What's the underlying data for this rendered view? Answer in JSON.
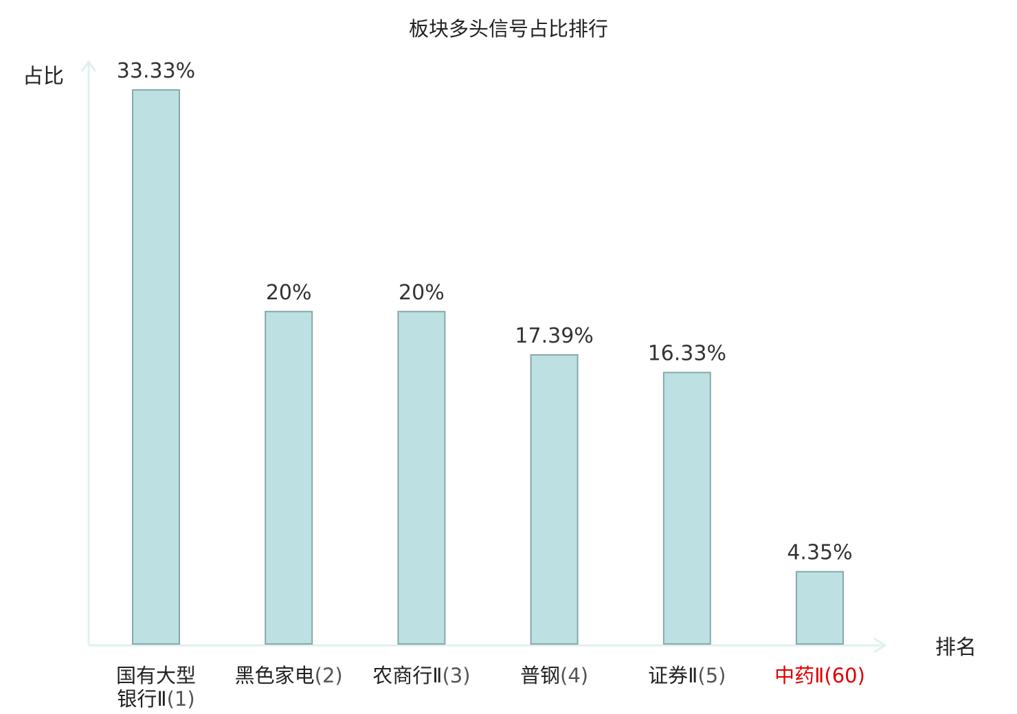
{
  "chart_data": {
    "type": "bar",
    "title": "板块多头信号占比排行",
    "ylabel": "占比",
    "xlabel": "排名",
    "ylim": [
      0,
      34.3
    ],
    "grid": false,
    "categories": [
      {
        "name": "国有大型银行Ⅱ",
        "rank": "(1)",
        "lines": [
          "国有大型",
          "银行Ⅱ"
        ],
        "highlight": false
      },
      {
        "name": "黑色家电",
        "rank": "(2)",
        "lines": [
          "黑色家电"
        ],
        "highlight": false
      },
      {
        "name": "农商行Ⅱ",
        "rank": "(3)",
        "lines": [
          "农商行Ⅱ"
        ],
        "highlight": false
      },
      {
        "name": "普钢",
        "rank": "(4)",
        "lines": [
          "普钢"
        ],
        "highlight": false
      },
      {
        "name": "证券Ⅱ",
        "rank": "(5)",
        "lines": [
          "证券Ⅱ"
        ],
        "highlight": false
      },
      {
        "name": "中药Ⅱ",
        "rank": "(60)",
        "lines": [
          "中药Ⅱ"
        ],
        "highlight": true
      }
    ],
    "values": [
      33.33,
      20,
      20,
      17.39,
      16.33,
      4.35
    ],
    "value_labels": [
      "33.33%",
      "20%",
      "20%",
      "17.39%",
      "16.33%",
      "4.35%"
    ],
    "colors": {
      "bar_fill": "#bde0e3",
      "bar_stroke": "#86a8ab",
      "axis": "#dff1ef",
      "highlight_text": "#e00000"
    }
  }
}
